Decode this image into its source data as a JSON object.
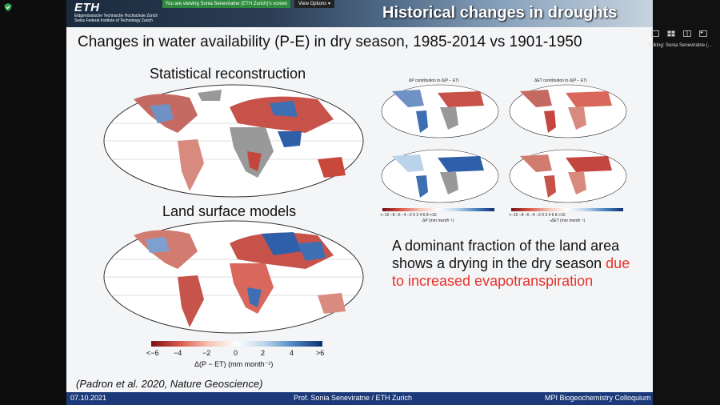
{
  "viewer": {
    "banner_text": "You are viewing Sonia Seneviratne (ETH Zurich)'s screen",
    "view_options_label": "View Options",
    "talking_label": "Talking: Sonia Seneviratne (..."
  },
  "slide": {
    "logo": "ETH",
    "institution_line1": "Eidgenössische Technische Hochschule Zürich",
    "institution_line2": "Swiss Federal Institute of Technology Zurich",
    "title": "Historical changes in droughts",
    "subtitle": "Changes in water availability (P-E) in dry season, 1985-2014 vs 1901-1950",
    "label_statistical": "Statistical reconstruction",
    "label_land": "Land surface models",
    "colorbar_ticks": [
      "<−6",
      "−4",
      "−2",
      "0",
      "2",
      "4",
      ">6"
    ],
    "colorbar_label": "Δ(P − ET) (mm month⁻¹)",
    "small_title_left": "ΔP contribution to Δ(P − ET)",
    "small_title_right": "ΔET contribution to Δ(P − ET)",
    "small_ticks_left": "<−10 −8 −6 −4 −2  0  2  4  6  8 >10",
    "small_ticks_right": "<−10 −8 −6 −4 −2  0  2  4  6  8 >10",
    "small_label_left": "ΔP (mm month⁻¹)",
    "small_label_right": "−ΔET (mm month⁻¹)",
    "statement_main": "A dominant fraction of the land area shows a drying in the dry season",
    "statement_highlight": "due to increased evapotranspiration",
    "citation": "(Padron et al. 2020, Nature Geoscience)",
    "footer_date": "07.10.2021",
    "footer_author": "Prof. Sonia Seneviratne / ETH Zurich",
    "footer_event": "MPI Biogeochemistry Colloquium"
  },
  "colors": {
    "footer": "#1c3a7a",
    "highlight": "#e8322b",
    "viewing_banner": "#2e8b3d"
  }
}
